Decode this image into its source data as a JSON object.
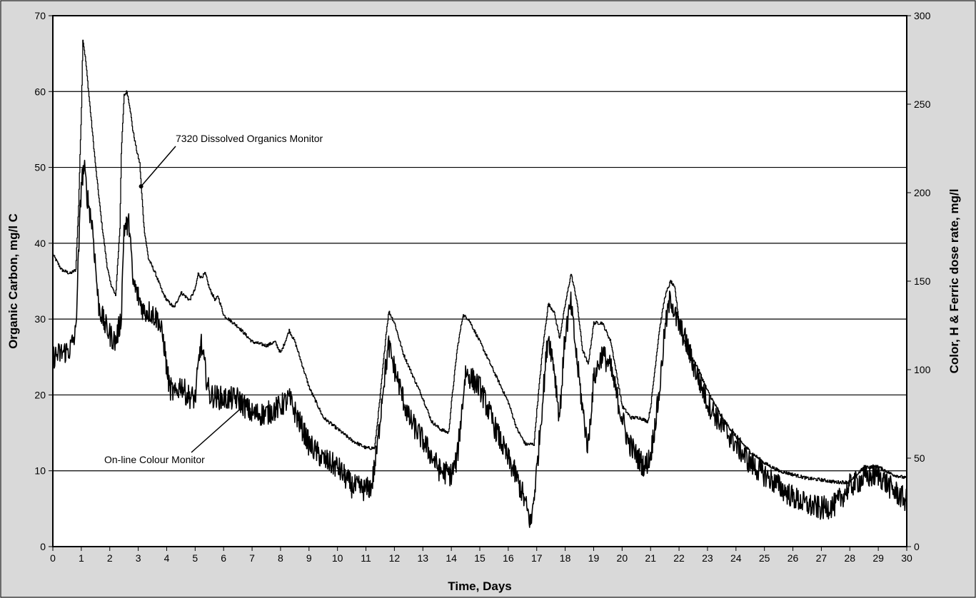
{
  "chart_data": {
    "type": "line",
    "title": "",
    "xlabel": "Time, Days",
    "ylabel_left": "Organic Carbon, mg/l C",
    "ylabel_right": "Color, H & Ferric dose rate, mg/l",
    "xlim": [
      0,
      30
    ],
    "ylim_left": [
      0,
      70
    ],
    "ylim_right": [
      0,
      300
    ],
    "x_ticks": [
      "0",
      "1",
      "2",
      "3",
      "4",
      "5",
      "6",
      "7",
      "8",
      "9",
      "10",
      "11",
      "12",
      "13",
      "14",
      "15",
      "16",
      "17",
      "18",
      "19",
      "20",
      "21",
      "22",
      "23",
      "24",
      "25",
      "26",
      "27",
      "28",
      "29",
      "30"
    ],
    "y_left_ticks": [
      "0",
      "10",
      "20",
      "30",
      "40",
      "50",
      "60",
      "70"
    ],
    "y_right_ticks": [
      "0",
      "50",
      "100",
      "150",
      "200",
      "250",
      "300"
    ],
    "grid": "horizontal",
    "colors": {
      "plot_bg": "#ffffff",
      "outer_bg": "#d9d9d9",
      "line": "#000000"
    },
    "annotations": [
      {
        "text": "7320 Dissolved Organics Monitor",
        "x": 3.1,
        "y": 47.5
      },
      {
        "text": "On-line Colour Monitor",
        "x": 6.6,
        "y": 18.2
      }
    ],
    "series": [
      {
        "axis": "left",
        "x": [
          0,
          0.3,
          0.6,
          0.8,
          0.9,
          1.0,
          1.05,
          1.15,
          1.3,
          1.5,
          1.7,
          1.9,
          2.0,
          2.2,
          2.35,
          2.4,
          2.5,
          2.6,
          2.7,
          2.8,
          2.95,
          3.05,
          3.1,
          3.2,
          3.35,
          3.6,
          3.85,
          4.0,
          4.25,
          4.5,
          4.8,
          5.0,
          5.1,
          5.2,
          5.35,
          5.5,
          5.7,
          5.8,
          6.0,
          6.5,
          7.0,
          7.5,
          7.8,
          8.0,
          8.15,
          8.3,
          8.5,
          9.0,
          9.5,
          10.0,
          10.5,
          11.0,
          11.3,
          11.5,
          11.7,
          11.8,
          12.0,
          12.3,
          12.7,
          13.0,
          13.3,
          13.6,
          13.9,
          14.0,
          14.2,
          14.4,
          14.6,
          15.0,
          15.5,
          16.0,
          16.3,
          16.6,
          16.9,
          17.0,
          17.2,
          17.4,
          17.6,
          17.8,
          18.0,
          18.2,
          18.4,
          18.6,
          18.8,
          19.0,
          19.3,
          19.6,
          20.0,
          20.3,
          20.6,
          20.9,
          21.0,
          21.3,
          21.5,
          21.7,
          21.85,
          22.0,
          22.3,
          22.6,
          23.0,
          23.5,
          24.0,
          24.5,
          25.0,
          25.5,
          26.0,
          26.5,
          27.0,
          27.5,
          28.0,
          28.5,
          29.0,
          29.5,
          30.0
        ],
        "y": [
          38.5,
          36.5,
          36.0,
          36.5,
          45.0,
          58.0,
          67.0,
          64.0,
          58.0,
          50.0,
          43.0,
          37.0,
          35.0,
          33.0,
          42.0,
          52.0,
          59.5,
          60.0,
          58.0,
          55.0,
          52.0,
          50.5,
          47.5,
          42.0,
          38.0,
          36.0,
          33.5,
          32.5,
          31.5,
          33.5,
          32.5,
          34.0,
          36.0,
          35.5,
          36.0,
          34.0,
          32.5,
          33.0,
          30.5,
          29.0,
          27.0,
          26.5,
          27.0,
          25.5,
          27.0,
          28.5,
          27.0,
          21.0,
          17.0,
          15.5,
          14.0,
          13.0,
          13.0,
          20.0,
          28.0,
          31.0,
          29.5,
          25.5,
          22.0,
          19.5,
          16.5,
          15.5,
          15.0,
          19.0,
          26.0,
          30.5,
          30.0,
          27.0,
          23.0,
          19.0,
          15.5,
          13.5,
          13.5,
          18.0,
          26.0,
          32.0,
          31.0,
          27.5,
          32.0,
          36.0,
          32.5,
          26.0,
          24.0,
          29.5,
          29.5,
          27.0,
          18.5,
          17.0,
          17.0,
          16.5,
          18.5,
          28.5,
          33.0,
          35.0,
          34.0,
          29.5,
          25.5,
          24.0,
          20.5,
          17.0,
          14.5,
          12.5,
          11.0,
          10.0,
          9.5,
          9.0,
          8.8,
          8.5,
          8.5,
          10.5,
          10.5,
          9.5,
          9.0
        ]
      },
      {
        "axis": "left",
        "x": [
          0,
          0.3,
          0.6,
          0.8,
          0.9,
          1.0,
          1.1,
          1.2,
          1.4,
          1.6,
          1.8,
          2.0,
          2.2,
          2.4,
          2.5,
          2.7,
          2.8,
          3.0,
          3.2,
          3.4,
          3.7,
          3.9,
          4.0,
          4.1,
          4.3,
          4.5,
          4.7,
          5.0,
          5.2,
          5.3,
          5.5,
          6.0,
          6.5,
          7.0,
          7.5,
          8.0,
          8.3,
          8.6,
          9.0,
          9.5,
          10.0,
          10.5,
          11.0,
          11.2,
          11.4,
          11.6,
          11.8,
          12.0,
          12.5,
          13.0,
          13.3,
          13.6,
          14.0,
          14.2,
          14.5,
          15.0,
          15.5,
          16.0,
          16.2,
          16.5,
          16.8,
          17.0,
          17.2,
          17.4,
          17.6,
          17.8,
          18.0,
          18.2,
          18.4,
          18.6,
          18.8,
          19.0,
          19.3,
          19.6,
          19.9,
          20.2,
          20.5,
          20.8,
          21.0,
          21.3,
          21.5,
          21.7,
          21.9,
          22.2,
          22.5,
          23.0,
          23.5,
          24.0,
          24.5,
          25.0,
          25.5,
          26.0,
          26.5,
          27.0,
          27.5,
          28.0,
          28.5,
          29.0,
          29.5,
          30.0
        ],
        "y": [
          25.0,
          25.5,
          26.0,
          28.0,
          38.0,
          48.0,
          50.0,
          46.5,
          42.0,
          32.0,
          29.5,
          28.0,
          27.0,
          30.0,
          42.0,
          42.5,
          35.0,
          33.0,
          31.0,
          31.0,
          30.0,
          27.0,
          23.5,
          21.0,
          20.0,
          21.5,
          20.0,
          19.5,
          27.0,
          24.5,
          20.0,
          19.5,
          19.5,
          17.5,
          17.5,
          18.5,
          19.5,
          17.0,
          13.5,
          11.5,
          10.5,
          8.0,
          7.5,
          8.0,
          13.0,
          21.0,
          26.5,
          23.5,
          17.0,
          14.0,
          12.0,
          10.0,
          9.5,
          11.5,
          23.0,
          21.0,
          16.0,
          11.5,
          10.0,
          7.0,
          3.0,
          10.0,
          19.0,
          28.0,
          24.0,
          17.0,
          28.0,
          32.0,
          25.0,
          18.5,
          13.0,
          22.0,
          25.5,
          23.5,
          18.5,
          14.0,
          12.0,
          10.5,
          12.0,
          20.0,
          28.5,
          33.0,
          30.0,
          27.5,
          24.0,
          19.0,
          16.0,
          13.5,
          11.0,
          9.5,
          8.0,
          6.5,
          5.5,
          5.0,
          5.5,
          8.0,
          9.0,
          9.5,
          7.5,
          6.0
        ],
        "style": "thick"
      }
    ]
  }
}
